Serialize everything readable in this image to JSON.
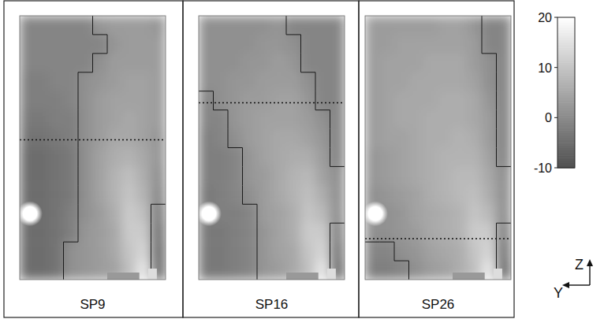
{
  "chart_data": {
    "type": "heatmap",
    "ylim": [
      0,
      1
    ],
    "tick_labels": false,
    "axis_labels": {
      "x": "Y",
      "y": "Z"
    },
    "colorbar": {
      "range": [
        -10,
        20
      ],
      "ticks": [
        -10,
        0,
        10,
        20
      ]
    },
    "panels": [
      {
        "title": "SP9",
        "level": 0.53,
        "cells": [
          [
            -1,
            -1,
            -1,
            -1,
            -1,
            2,
            3,
            3,
            3,
            2
          ],
          [
            -1,
            -1,
            -1,
            -1,
            -1,
            -1,
            2,
            3,
            3,
            3
          ],
          [
            -1,
            -1,
            -1,
            -1,
            -1,
            1,
            3,
            3,
            3,
            3
          ],
          [
            -2,
            -2,
            -1,
            -1,
            1,
            2,
            3,
            4,
            4,
            3
          ],
          [
            -2,
            -2,
            -2,
            -1,
            1,
            3,
            4,
            4,
            4,
            3
          ],
          [
            -3,
            -3,
            -2,
            -2,
            1,
            3,
            4,
            5,
            4,
            3
          ],
          [
            -4,
            -4,
            -3,
            -2,
            1,
            3,
            5,
            5,
            4,
            2
          ],
          [
            -5,
            -5,
            -4,
            -3,
            1,
            4,
            6,
            7,
            5,
            2
          ],
          [
            -5,
            -5,
            -4,
            -3,
            1,
            4,
            7,
            9,
            6,
            1
          ],
          [
            -5,
            -5,
            -4,
            -3,
            1,
            4,
            7,
            10,
            7,
            0
          ],
          [
            -5,
            -5,
            -4,
            -2,
            1,
            3,
            6,
            11,
            9,
            -2
          ],
          [
            -5,
            -5,
            -4,
            -2,
            2,
            3,
            5,
            11,
            11,
            -4
          ],
          [
            -5,
            -5,
            -4,
            1,
            2,
            3,
            5,
            10,
            13,
            -5
          ],
          [
            -5,
            -5,
            -4,
            1,
            2,
            3,
            4,
            9,
            16,
            -5
          ]
        ]
      },
      {
        "title": "SP16",
        "level": 0.67,
        "cells": [
          [
            1,
            1,
            1,
            1,
            1,
            2,
            -1,
            -1,
            -1,
            -1
          ],
          [
            1,
            1,
            1,
            1,
            2,
            2,
            1,
            -1,
            -1,
            -1
          ],
          [
            1,
            1,
            1,
            2,
            2,
            3,
            2,
            -1,
            -1,
            -1
          ],
          [
            1,
            1,
            2,
            2,
            3,
            3,
            3,
            1,
            -1,
            -1
          ],
          [
            -1,
            1,
            2,
            3,
            3,
            4,
            4,
            2,
            -1,
            -1
          ],
          [
            -1,
            -1,
            2,
            3,
            4,
            4,
            4,
            3,
            1,
            -1
          ],
          [
            -2,
            -1,
            1,
            3,
            4,
            5,
            5,
            4,
            2,
            -1
          ],
          [
            -2,
            -2,
            -1,
            2,
            4,
            5,
            6,
            6,
            3,
            -1
          ],
          [
            -2,
            -2,
            -1,
            2,
            3,
            5,
            7,
            8,
            4,
            1
          ],
          [
            -3,
            -2,
            -1,
            1,
            3,
            5,
            7,
            9,
            6,
            1
          ],
          [
            -3,
            -2,
            -2,
            -1,
            3,
            4,
            6,
            10,
            8,
            1
          ],
          [
            -3,
            -3,
            -2,
            -1,
            2,
            4,
            6,
            11,
            11,
            -1
          ],
          [
            -3,
            -3,
            -2,
            -1,
            2,
            4,
            5,
            10,
            13,
            -3
          ],
          [
            -3,
            -3,
            -2,
            -1,
            2,
            3,
            5,
            9,
            16,
            -5
          ]
        ]
      },
      {
        "title": "SP26",
        "level": 0.155,
        "cells": [
          [
            3,
            3,
            3,
            3,
            3,
            4,
            4,
            2,
            -1,
            -1
          ],
          [
            3,
            3,
            4,
            4,
            4,
            4,
            4,
            3,
            -1,
            -1
          ],
          [
            3,
            4,
            4,
            4,
            5,
            5,
            5,
            3,
            1,
            -1
          ],
          [
            3,
            4,
            4,
            5,
            5,
            5,
            5,
            4,
            1,
            -1
          ],
          [
            3,
            4,
            5,
            5,
            5,
            6,
            6,
            5,
            2,
            -1
          ],
          [
            3,
            4,
            5,
            5,
            6,
            6,
            6,
            5,
            3,
            -1
          ],
          [
            3,
            4,
            4,
            5,
            6,
            6,
            7,
            6,
            3,
            -1
          ],
          [
            2,
            3,
            4,
            5,
            6,
            7,
            7,
            7,
            4,
            -1
          ],
          [
            2,
            3,
            4,
            5,
            6,
            7,
            8,
            8,
            5,
            1
          ],
          [
            1,
            2,
            3,
            4,
            6,
            7,
            8,
            9,
            6,
            1
          ],
          [
            1,
            1,
            2,
            4,
            5,
            6,
            7,
            10,
            8,
            1
          ],
          [
            1,
            1,
            2,
            3,
            5,
            6,
            7,
            11,
            11,
            -1
          ],
          [
            -1,
            -1,
            1,
            2,
            4,
            5,
            6,
            10,
            13,
            -3
          ],
          [
            -2,
            -2,
            -1,
            1,
            3,
            4,
            6,
            9,
            16,
            -5
          ]
        ]
      }
    ]
  }
}
